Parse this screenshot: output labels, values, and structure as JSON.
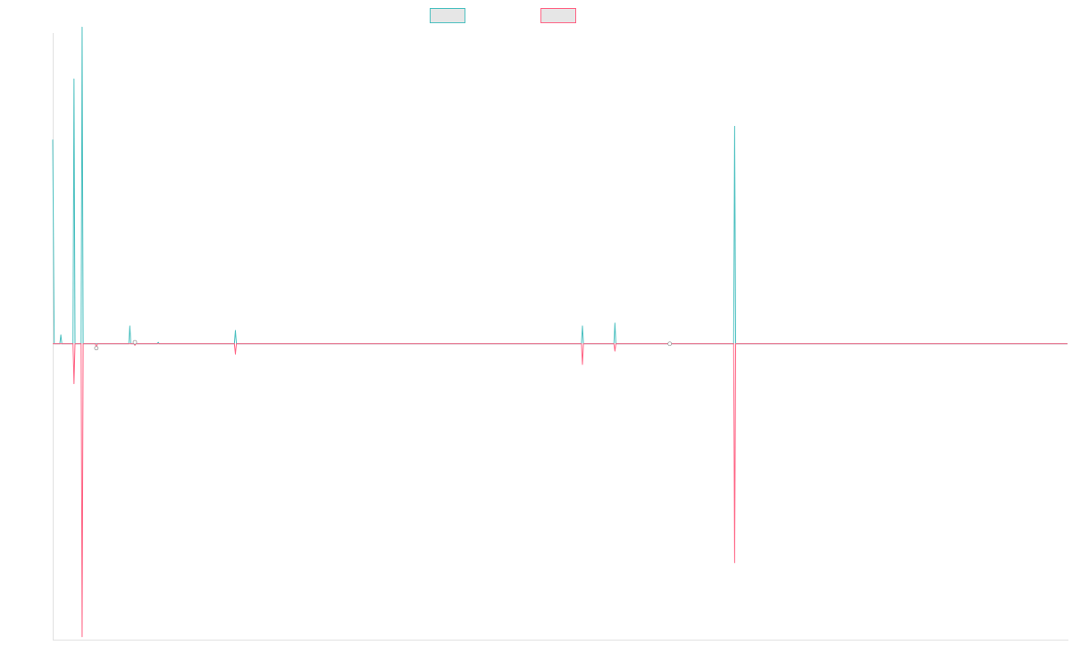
{
  "chart_data": {
    "type": "line",
    "title": "",
    "xlabel": "",
    "ylabel": "",
    "grid": false,
    "legend_position": "top-center",
    "x_range": [
      0,
      1000
    ],
    "y_range": [
      -100,
      105
    ],
    "baseline": 0,
    "series": [
      {
        "name": "",
        "color": "#4bc0c0",
        "fill": "#e6e6e6",
        "points": [
          [
            0,
            69
          ],
          [
            1.5,
            0
          ],
          [
            7,
            0
          ],
          [
            8,
            3
          ],
          [
            9,
            0
          ],
          [
            20,
            0
          ],
          [
            21,
            89.5
          ],
          [
            22,
            0
          ],
          [
            28,
            0
          ],
          [
            29,
            107
          ],
          [
            30,
            0
          ],
          [
            75,
            0
          ],
          [
            76,
            6
          ],
          [
            77,
            0
          ],
          [
            80,
            0
          ],
          [
            81,
            1
          ],
          [
            82,
            0
          ],
          [
            103,
            0
          ],
          [
            104,
            0.5
          ],
          [
            105,
            0
          ],
          [
            179,
            0
          ],
          [
            180,
            4.5
          ],
          [
            181,
            0
          ],
          [
            521,
            0
          ],
          [
            522,
            6
          ],
          [
            523,
            0
          ],
          [
            553,
            0
          ],
          [
            554,
            7
          ],
          [
            555,
            0
          ],
          [
            607,
            0
          ],
          [
            608,
            0.5
          ],
          [
            609,
            0
          ],
          [
            671,
            0
          ],
          [
            672,
            73.5
          ],
          [
            673,
            0
          ],
          [
            1000,
            0
          ]
        ]
      },
      {
        "name": "",
        "color": "#ff6384",
        "fill": "#e6e6e6",
        "points": [
          [
            0,
            0
          ],
          [
            20,
            0
          ],
          [
            21,
            -13.5
          ],
          [
            22,
            0
          ],
          [
            28,
            0
          ],
          [
            29,
            -99
          ],
          [
            30,
            0
          ],
          [
            42,
            0
          ],
          [
            43,
            -1.5
          ],
          [
            44,
            0
          ],
          [
            80,
            0
          ],
          [
            81,
            -0.5
          ],
          [
            82,
            0
          ],
          [
            179,
            0
          ],
          [
            180,
            -3.5
          ],
          [
            181,
            0
          ],
          [
            521,
            0
          ],
          [
            522,
            -7
          ],
          [
            523,
            0
          ],
          [
            553,
            0
          ],
          [
            554,
            -2.5
          ],
          [
            555,
            0
          ],
          [
            607,
            0
          ],
          [
            608,
            -0.5
          ],
          [
            609,
            0
          ],
          [
            671,
            0
          ],
          [
            672,
            -74
          ],
          [
            673,
            0
          ],
          [
            1000,
            0
          ]
        ]
      }
    ]
  }
}
